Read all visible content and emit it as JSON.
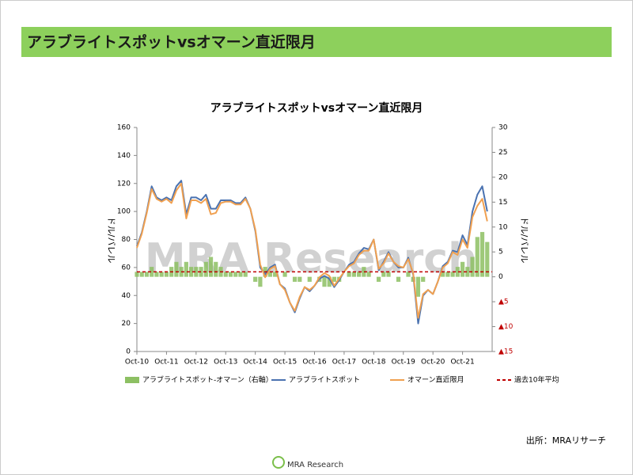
{
  "header": {
    "title": "アラブライトスポットvsオマーン直近限月"
  },
  "chart_data": {
    "type": "line",
    "title": "アラブライトスポットvsオマーン直近限月",
    "y_label": "ドル/バレル",
    "y2_label": "ドル/バレル",
    "x": [
      "2010-10",
      "2010-12",
      "2011-02",
      "2011-04",
      "2011-06",
      "2011-08",
      "2011-10",
      "2011-12",
      "2012-02",
      "2012-04",
      "2012-06",
      "2012-08",
      "2012-10",
      "2012-12",
      "2013-02",
      "2013-04",
      "2013-06",
      "2013-08",
      "2013-10",
      "2013-12",
      "2014-02",
      "2014-04",
      "2014-06",
      "2014-08",
      "2014-10",
      "2014-12",
      "2015-02",
      "2015-04",
      "2015-06",
      "2015-08",
      "2015-10",
      "2015-12",
      "2016-02",
      "2016-04",
      "2016-06",
      "2016-08",
      "2016-10",
      "2016-12",
      "2017-02",
      "2017-04",
      "2017-06",
      "2017-08",
      "2017-10",
      "2017-12",
      "2018-02",
      "2018-04",
      "2018-06",
      "2018-08",
      "2018-10",
      "2018-12",
      "2019-02",
      "2019-04",
      "2019-06",
      "2019-08",
      "2019-10",
      "2019-12",
      "2020-02",
      "2020-04",
      "2020-06",
      "2020-08",
      "2020-10",
      "2020-12",
      "2021-02",
      "2021-04",
      "2021-06",
      "2021-08",
      "2021-10",
      "2021-12",
      "2022-02",
      "2022-04",
      "2022-06",
      "2022-08"
    ],
    "series": [
      {
        "name": "アラブライトスポット-オマーン（右軸）",
        "color": "#8dc063",
        "type": "bar",
        "axis": "y2",
        "values": [
          1,
          1,
          1,
          2,
          1,
          1,
          1,
          2,
          3,
          2,
          3,
          2,
          2,
          2,
          3,
          4,
          3,
          2,
          1,
          1,
          1,
          1,
          1,
          0,
          -1,
          -2,
          2,
          1,
          1,
          0,
          1,
          0,
          -1,
          -1,
          0,
          -1,
          0,
          -1,
          -2,
          -2,
          -1,
          -1,
          0,
          1,
          1,
          1,
          2,
          1,
          0,
          -1,
          1,
          1,
          0,
          -1,
          0,
          1,
          -1,
          -4,
          -1,
          0,
          0,
          0,
          1,
          1,
          1,
          2,
          3,
          2,
          4,
          8,
          9,
          7
        ]
      },
      {
        "name": "アラブライトスポット",
        "color": "#4a72b0",
        "type": "line",
        "values": [
          75,
          85,
          100,
          118,
          110,
          108,
          110,
          108,
          118,
          122,
          98,
          110,
          110,
          108,
          112,
          102,
          102,
          108,
          108,
          108,
          106,
          106,
          110,
          102,
          86,
          60,
          55,
          60,
          62,
          48,
          45,
          35,
          28,
          38,
          46,
          43,
          47,
          52,
          54,
          52,
          46,
          51,
          57,
          62,
          64,
          70,
          74,
          73,
          80,
          58,
          64,
          71,
          64,
          60,
          60,
          67,
          55,
          20,
          40,
          44,
          41,
          50,
          61,
          64,
          72,
          71,
          83,
          76,
          100,
          112,
          118,
          100
        ]
      },
      {
        "name": "オマーン直近限月",
        "color": "#f0a050",
        "type": "line",
        "values": [
          74,
          84,
          99,
          116,
          109,
          107,
          109,
          106,
          115,
          120,
          95,
          108,
          108,
          106,
          109,
          98,
          99,
          106,
          107,
          107,
          105,
          105,
          109,
          102,
          87,
          62,
          53,
          59,
          61,
          48,
          44,
          35,
          29,
          39,
          46,
          44,
          47,
          53,
          56,
          54,
          47,
          52,
          57,
          61,
          63,
          69,
          72,
          72,
          80,
          59,
          63,
          70,
          64,
          61,
          60,
          66,
          56,
          24,
          41,
          44,
          41,
          50,
          60,
          63,
          71,
          69,
          80,
          74,
          96,
          104,
          109,
          93
        ]
      }
    ],
    "average": {
      "name": "過去10年平均",
      "value": 1,
      "color": "#c00000",
      "axis": "y2"
    },
    "xlim": [
      "2010-10",
      "2022-10"
    ],
    "xticks": [
      {
        "value": "2010-10",
        "label": "Oct-10"
      },
      {
        "value": "2011-10",
        "label": "Oct-11"
      },
      {
        "value": "2012-10",
        "label": "Oct-12"
      },
      {
        "value": "2013-10",
        "label": "Oct-13"
      },
      {
        "value": "2014-10",
        "label": "Oct-14"
      },
      {
        "value": "2015-10",
        "label": "Oct-15"
      },
      {
        "value": "2016-10",
        "label": "Oct-16"
      },
      {
        "value": "2017-10",
        "label": "Oct-17"
      },
      {
        "value": "2018-10",
        "label": "Oct-18"
      },
      {
        "value": "2019-10",
        "label": "Oct-19"
      },
      {
        "value": "2020-10",
        "label": "Oct-20"
      },
      {
        "value": "2021-10",
        "label": "Oct-21"
      }
    ],
    "ylim": [
      0,
      160
    ],
    "yticks": [
      0,
      20,
      40,
      60,
      80,
      100,
      120,
      140,
      160
    ],
    "y2lim": [
      -15,
      30
    ],
    "y2ticks": [
      {
        "value": -15,
        "label": "▲15"
      },
      {
        "value": -10,
        "label": "▲10"
      },
      {
        "value": -5,
        "label": "▲5"
      },
      0,
      5,
      10,
      15,
      20,
      25,
      30
    ],
    "y2tick_negative_color": "#c00000"
  },
  "watermark": "MRA Research",
  "source": "出所：MRAリサーチ",
  "logo": "MRA Research"
}
